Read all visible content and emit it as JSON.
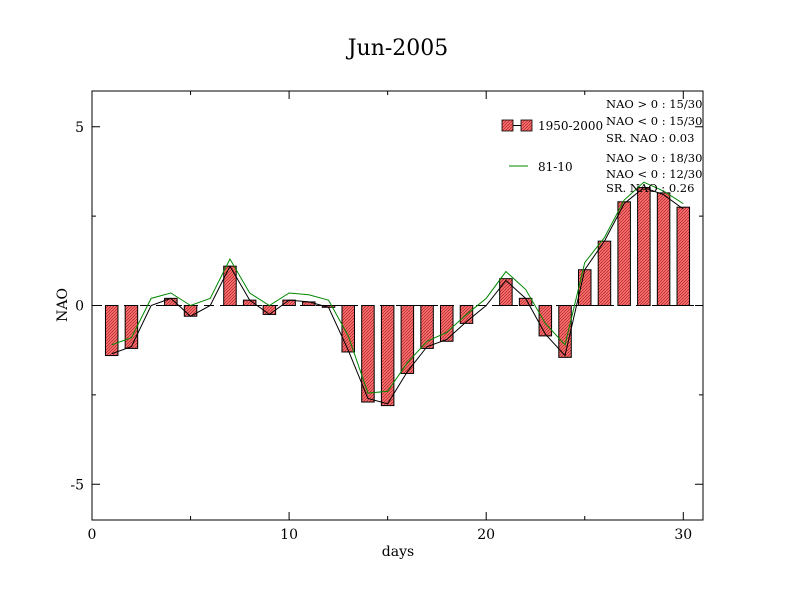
{
  "chart_data": {
    "type": "bar",
    "title": "Jun-2005",
    "xlabel": "days",
    "ylabel": "NAO",
    "xlim": [
      0,
      31
    ],
    "ylim": [
      -6,
      6
    ],
    "xticks": [
      0,
      10,
      20,
      30
    ],
    "yticks": [
      -5,
      0,
      5
    ],
    "xtick_labels": [
      "0",
      "10",
      "20",
      "30"
    ],
    "ytick_labels": [
      "-5",
      "0",
      "5"
    ],
    "grid": false,
    "legend_position": "top-right",
    "days": [
      1,
      2,
      3,
      4,
      5,
      6,
      7,
      8,
      9,
      10,
      11,
      12,
      13,
      14,
      15,
      16,
      17,
      18,
      19,
      20,
      21,
      22,
      23,
      24,
      25,
      26,
      27,
      28,
      29,
      30
    ],
    "series": [
      {
        "name": "1950-2000",
        "kind": "bar",
        "color": "#ff5555",
        "values": [
          -1.4,
          -1.2,
          0.0,
          0.2,
          -0.3,
          0.0,
          1.1,
          0.15,
          -0.25,
          0.15,
          0.1,
          -0.05,
          -1.3,
          -2.7,
          -2.8,
          -1.9,
          -1.2,
          -1.0,
          -0.5,
          0.0,
          0.75,
          0.2,
          -0.85,
          -1.45,
          1.0,
          1.8,
          2.9,
          3.3,
          3.15,
          2.75
        ]
      },
      {
        "kind": "line",
        "color": "#000000",
        "values": [
          -1.35,
          -1.15,
          0.0,
          0.2,
          -0.3,
          0.0,
          1.1,
          0.15,
          -0.25,
          0.15,
          0.1,
          -0.05,
          -1.25,
          -2.6,
          -2.75,
          -1.85,
          -1.15,
          -0.95,
          -0.45,
          0.0,
          0.7,
          0.2,
          -0.8,
          -1.4,
          1.0,
          1.8,
          2.85,
          3.3,
          3.1,
          2.7
        ]
      },
      {
        "name": "81-10",
        "kind": "line",
        "color": "#008800",
        "values": [
          -1.1,
          -0.9,
          0.2,
          0.35,
          0.0,
          0.2,
          1.3,
          0.35,
          0.0,
          0.35,
          0.3,
          0.15,
          -0.85,
          -2.45,
          -2.4,
          -1.6,
          -1.0,
          -0.75,
          -0.25,
          0.2,
          0.95,
          0.45,
          -0.5,
          -1.1,
          1.2,
          1.9,
          2.95,
          3.45,
          3.2,
          2.85
        ]
      }
    ],
    "stats": [
      [
        "NAO > 0 :  15/30",
        "NAO < 0 :  15/30",
        "SR. NAO :  0.03"
      ],
      [
        "NAO > 0 :  18/30",
        "NAO < 0 :  12/30",
        "SR. NAO :  0.26"
      ]
    ]
  }
}
